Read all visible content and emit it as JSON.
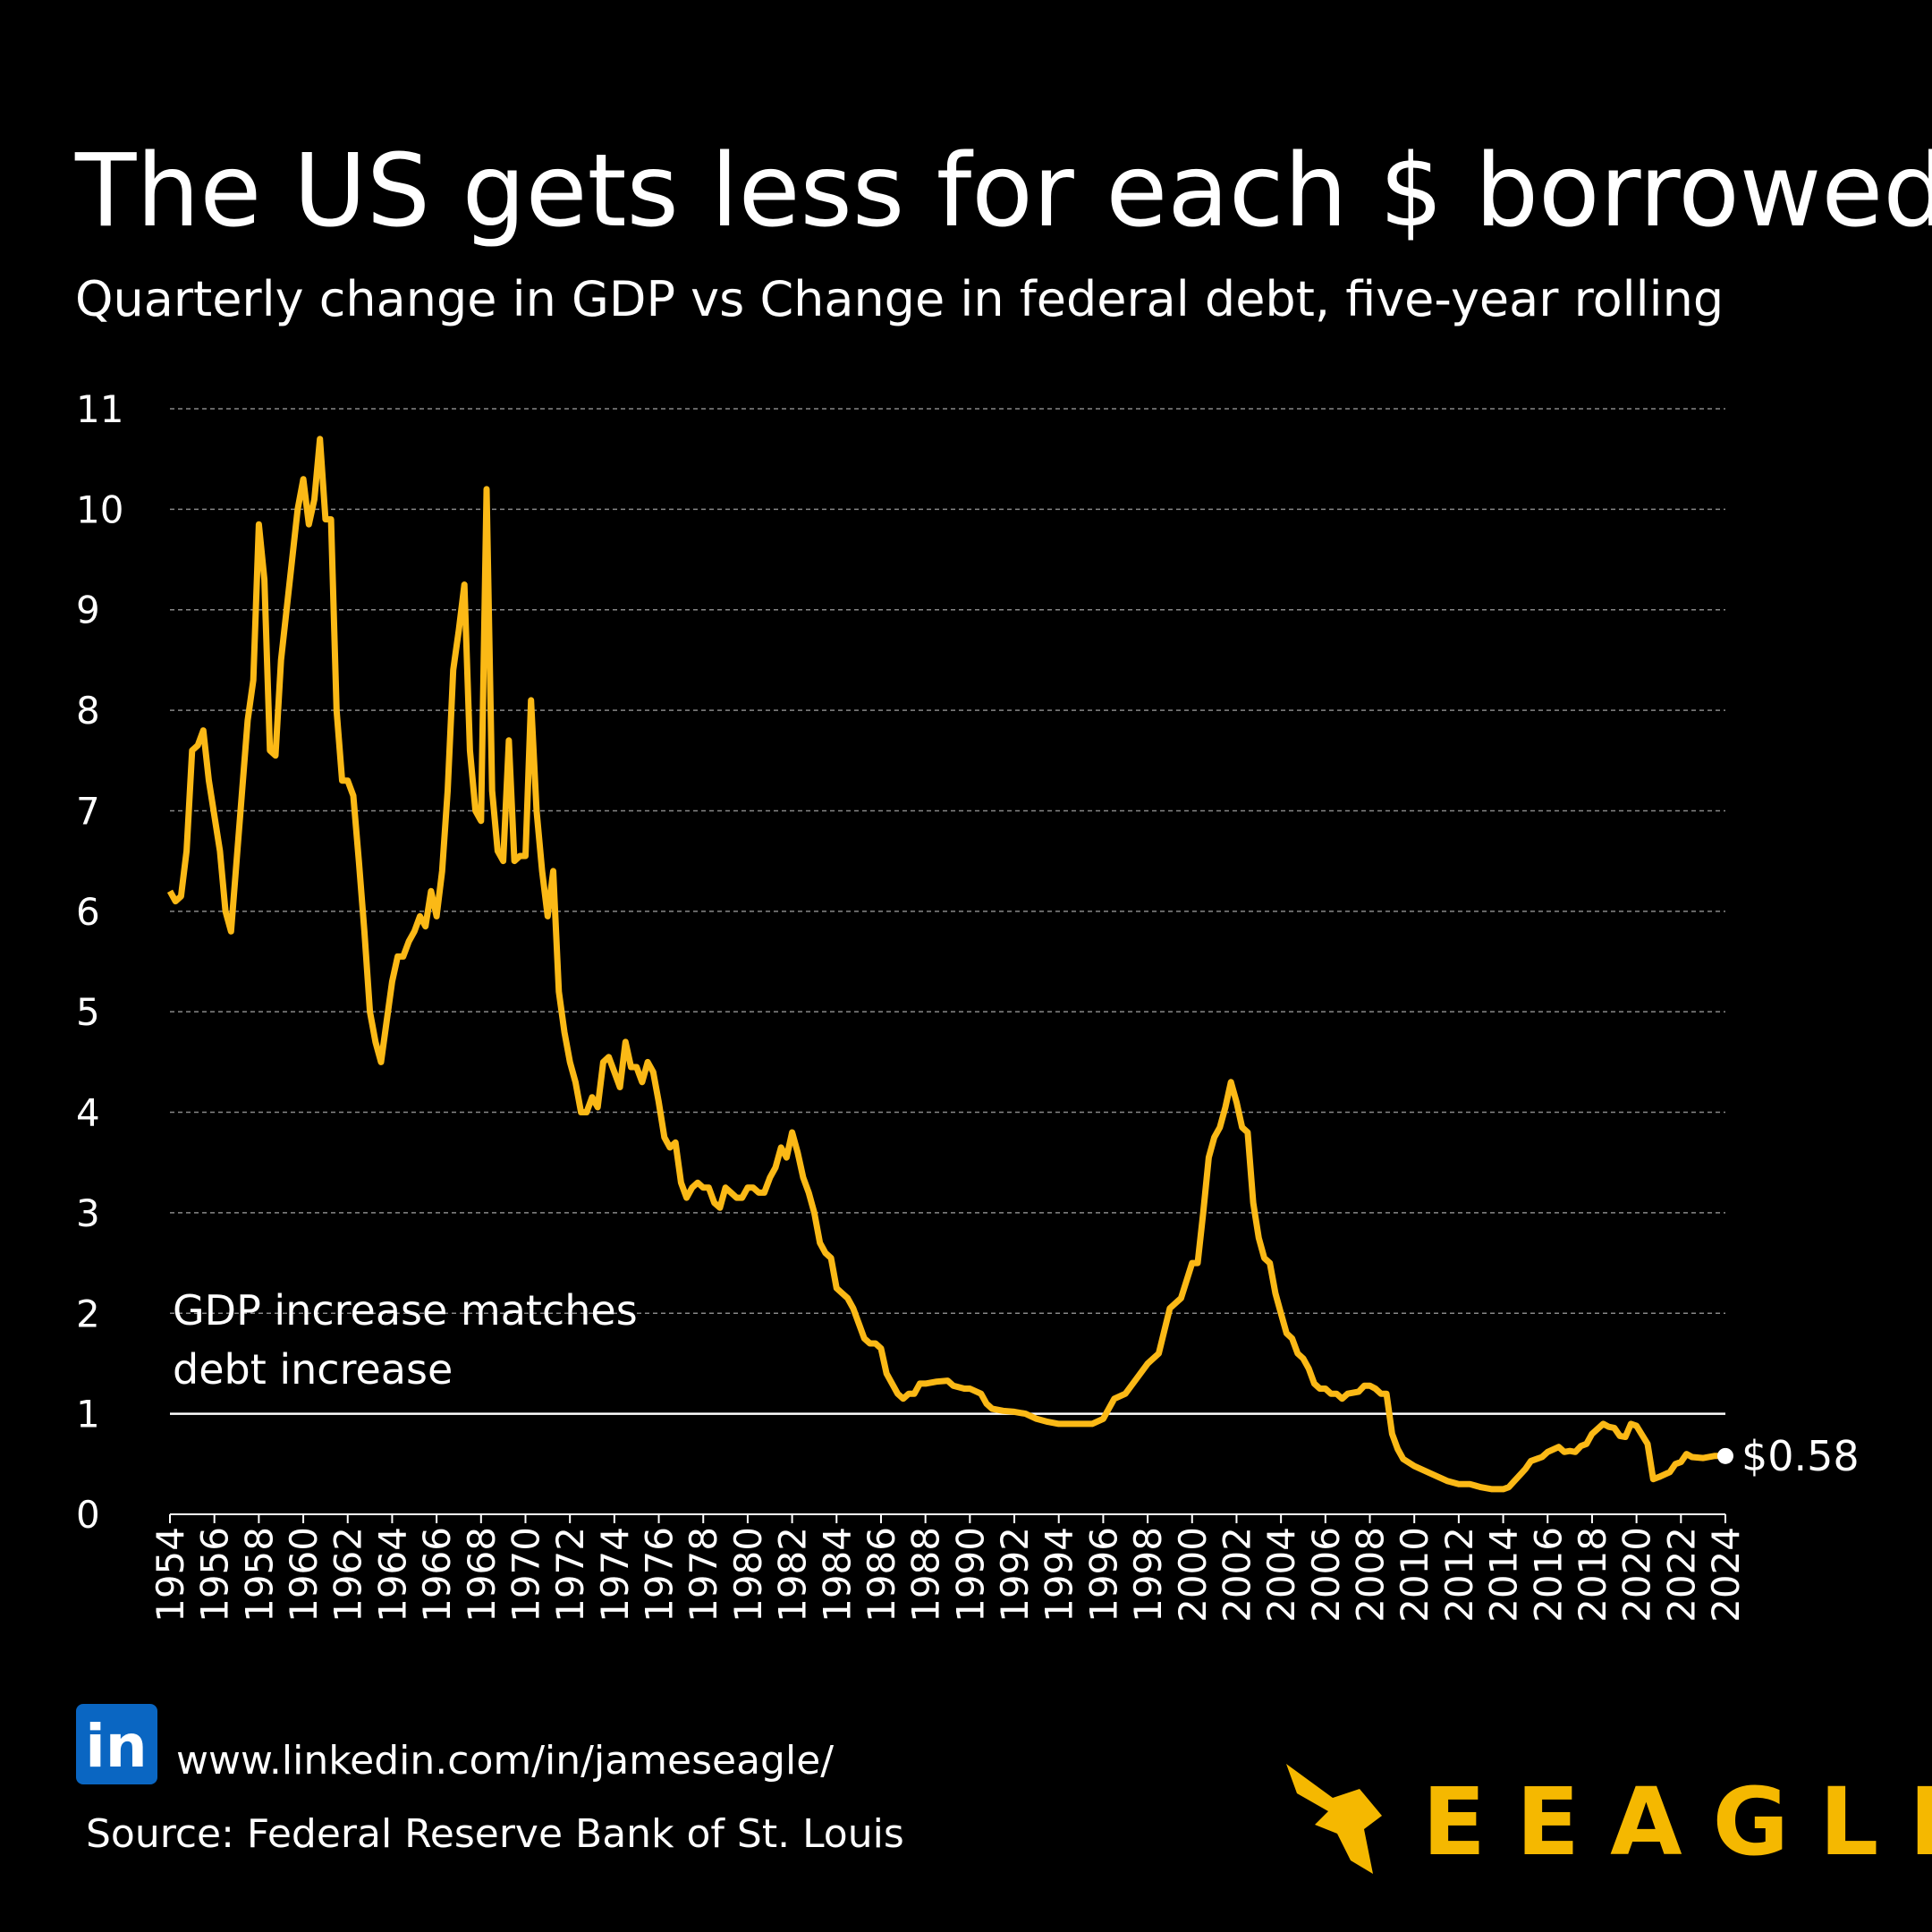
{
  "chart_data": {
    "type": "line",
    "title": "The US gets less for each $ borrowed",
    "subtitle": "Quarterly change in GDP vs Change in federal debt, five-year rolling",
    "color": "#fbb916",
    "x": [
      1954.0,
      1954.25,
      1954.5,
      1954.75,
      1955.0,
      1955.25,
      1955.5,
      1955.75,
      1956.25,
      1956.5,
      1956.75,
      1957.0,
      1957.5,
      1957.75,
      1958.0,
      1958.25,
      1958.5,
      1958.75,
      1959.0,
      1959.5,
      1959.75,
      1960.0,
      1960.25,
      1960.5,
      1960.75,
      1961.0,
      1961.25,
      1961.5,
      1961.75,
      1962.0,
      1962.25,
      1962.5,
      1962.75,
      1963.0,
      1963.25,
      1963.5,
      1963.75,
      1964.0,
      1964.25,
      1964.5,
      1964.75,
      1965.0,
      1965.25,
      1965.5,
      1965.75,
      1966.0,
      1966.25,
      1966.5,
      1966.75,
      1967.0,
      1967.25,
      1967.5,
      1967.75,
      1968.0,
      1968.25,
      1968.5,
      1968.75,
      1969.0,
      1969.25,
      1969.5,
      1969.75,
      1970.0,
      1970.25,
      1970.5,
      1970.75,
      1971.0,
      1971.25,
      1971.5,
      1971.75,
      1972.0,
      1972.25,
      1972.5,
      1972.75,
      1973.0,
      1973.25,
      1973.5,
      1973.75,
      1974.0,
      1974.25,
      1974.5,
      1974.75,
      1975.0,
      1975.25,
      1975.5,
      1975.75,
      1976.0,
      1976.25,
      1976.5,
      1976.75,
      1977.0,
      1977.25,
      1977.5,
      1977.75,
      1978.0,
      1978.25,
      1978.5,
      1978.75,
      1979.0,
      1979.25,
      1979.5,
      1979.75,
      1980.0,
      1980.25,
      1980.5,
      1980.75,
      1981.0,
      1981.25,
      1981.5,
      1981.75,
      1982.0,
      1982.25,
      1982.5,
      1982.75,
      1983.0,
      1983.25,
      1983.5,
      1983.75,
      1984.0,
      1984.25,
      1984.5,
      1984.75,
      1985.0,
      1985.25,
      1985.5,
      1985.75,
      1986.0,
      1986.25,
      1986.5,
      1986.75,
      1987.0,
      1987.25,
      1987.5,
      1987.75,
      1988.0,
      1988.5,
      1989.0,
      1989.25,
      1989.75,
      1990.0,
      1990.5,
      1990.75,
      1991.0,
      1991.5,
      1992.0,
      1992.5,
      1993.0,
      1993.5,
      1994.0,
      1994.5,
      1995.0,
      1995.5,
      1996.0,
      1996.25,
      1996.5,
      1997.0,
      1997.5,
      1998.0,
      1998.5,
      1999.0,
      1999.5,
      2000.0,
      2000.25,
      2000.5,
      2000.75,
      2001.0,
      2001.25,
      2001.5,
      2001.75,
      2002.0,
      2002.25,
      2002.5,
      2002.75,
      2003.0,
      2003.25,
      2003.5,
      2003.75,
      2004.0,
      2004.25,
      2004.5,
      2004.75,
      2005.0,
      2005.25,
      2005.5,
      2005.75,
      2006.0,
      2006.25,
      2006.5,
      2006.75,
      2007.0,
      2007.5,
      2007.75,
      2008.0,
      2008.25,
      2008.5,
      2008.75,
      2009.0,
      2009.25,
      2009.5,
      2010.0,
      2010.5,
      2011.0,
      2011.5,
      2012.0,
      2012.5,
      2013.0,
      2013.5,
      2014.0,
      2014.25,
      2014.5,
      2015.0,
      2015.25,
      2015.5,
      2015.75,
      2016.0,
      2016.5,
      2016.75,
      2017.0,
      2017.25,
      2017.5,
      2017.75,
      2018.0,
      2018.25,
      2018.5,
      2018.75,
      2019.0,
      2019.25,
      2019.5,
      2019.75,
      2020.0,
      2020.5,
      2020.75,
      2021.0,
      2021.5,
      2021.75,
      2022.0,
      2022.25,
      2022.5,
      2023.0,
      2023.5,
      2024.0
    ],
    "values": [
      6.2,
      6.1,
      6.15,
      6.6,
      7.6,
      7.65,
      7.8,
      7.3,
      6.6,
      6.0,
      5.8,
      6.5,
      7.9,
      8.3,
      9.85,
      9.3,
      7.6,
      7.55,
      8.5,
      9.5,
      10.0,
      10.3,
      9.85,
      10.1,
      10.7,
      9.9,
      9.9,
      8.0,
      7.3,
      7.3,
      7.15,
      6.5,
      5.8,
      5.0,
      4.7,
      4.5,
      4.9,
      5.3,
      5.55,
      5.55,
      5.7,
      5.8,
      5.95,
      5.85,
      6.2,
      5.95,
      6.4,
      7.2,
      8.4,
      8.8,
      9.25,
      7.6,
      7.0,
      6.9,
      10.2,
      7.2,
      6.6,
      6.5,
      7.7,
      6.5,
      6.55,
      6.55,
      8.1,
      7.0,
      6.4,
      5.95,
      6.4,
      5.2,
      4.8,
      4.5,
      4.3,
      4.0,
      4.0,
      4.15,
      4.05,
      4.5,
      4.55,
      4.4,
      4.25,
      4.7,
      4.45,
      4.45,
      4.3,
      4.5,
      4.4,
      4.1,
      3.75,
      3.65,
      3.7,
      3.3,
      3.15,
      3.25,
      3.3,
      3.25,
      3.25,
      3.1,
      3.05,
      3.25,
      3.2,
      3.15,
      3.15,
      3.25,
      3.25,
      3.2,
      3.2,
      3.35,
      3.45,
      3.65,
      3.55,
      3.8,
      3.6,
      3.35,
      3.2,
      3.0,
      2.7,
      2.6,
      2.55,
      2.25,
      2.2,
      2.15,
      2.05,
      1.9,
      1.75,
      1.7,
      1.7,
      1.65,
      1.4,
      1.3,
      1.2,
      1.15,
      1.2,
      1.2,
      1.3,
      1.3,
      1.32,
      1.33,
      1.28,
      1.25,
      1.25,
      1.2,
      1.1,
      1.05,
      1.03,
      1.02,
      1.0,
      0.95,
      0.92,
      0.9,
      0.9,
      0.9,
      0.9,
      0.95,
      1.05,
      1.15,
      1.2,
      1.35,
      1.5,
      1.6,
      2.05,
      2.15,
      2.5,
      2.5,
      3.0,
      3.55,
      3.75,
      3.85,
      4.05,
      4.3,
      4.1,
      3.85,
      3.8,
      3.1,
      2.75,
      2.55,
      2.5,
      2.2,
      2.0,
      1.8,
      1.75,
      1.6,
      1.55,
      1.45,
      1.3,
      1.25,
      1.25,
      1.2,
      1.2,
      1.15,
      1.2,
      1.22,
      1.28,
      1.28,
      1.25,
      1.2,
      1.2,
      0.8,
      0.65,
      0.55,
      0.48,
      0.43,
      0.38,
      0.33,
      0.3,
      0.3,
      0.27,
      0.25,
      0.25,
      0.27,
      0.33,
      0.45,
      0.53,
      0.55,
      0.57,
      0.62,
      0.67,
      0.62,
      0.63,
      0.62,
      0.68,
      0.7,
      0.8,
      0.85,
      0.9,
      0.87,
      0.86,
      0.78,
      0.77,
      0.9,
      0.88,
      0.7,
      0.35,
      0.37,
      0.42,
      0.5,
      0.52,
      0.6,
      0.57,
      0.56,
      0.58,
      0.58
    ],
    "end_label": {
      "value": 0.58,
      "label": "$0.58"
    },
    "xlim": [
      1954,
      2024
    ],
    "xticks": [
      1954,
      1956,
      1958,
      1960,
      1962,
      1964,
      1966,
      1968,
      1970,
      1972,
      1974,
      1976,
      1978,
      1980,
      1982,
      1984,
      1986,
      1988,
      1990,
      1992,
      1994,
      1996,
      1998,
      2000,
      2002,
      2004,
      2006,
      2008,
      2010,
      2012,
      2014,
      2016,
      2018,
      2020,
      2022,
      2024
    ],
    "ylim": [
      0,
      11
    ],
    "yticks": [
      0,
      1,
      2,
      3,
      4,
      5,
      6,
      7,
      8,
      9,
      10,
      11
    ],
    "grid": true,
    "reference_line": {
      "value": 1,
      "label": [
        "GDP increase matches",
        "debt increase"
      ]
    }
  },
  "footer": {
    "icon": "in",
    "url": "www.linkedin.com/in/jameseagle/",
    "source": "Source: Federal Reserve Bank of St. Louis",
    "brand": "EEAGLI"
  }
}
